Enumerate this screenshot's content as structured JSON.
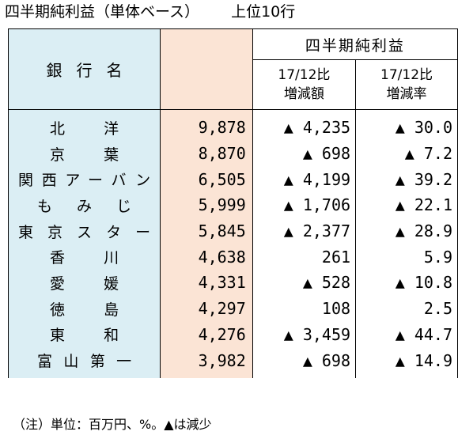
{
  "title": "四半期純利益（単体ベース）",
  "subtitle": "上位10行",
  "header": {
    "bank": "銀行名",
    "main": "四半期純利益",
    "diff_label_1": "17/12比",
    "diff_label_2": "増減額",
    "rate_label_1": "17/12比",
    "rate_label_2": "増減率"
  },
  "rows": [
    {
      "bank": "北洋",
      "value": "9,878",
      "diff": "▲ 4,235",
      "rate": "▲ 30.0"
    },
    {
      "bank": "京葉",
      "value": "8,870",
      "diff": "▲ 698",
      "rate": "▲ 7.2"
    },
    {
      "bank": "関西アーバン",
      "value": "6,505",
      "diff": "▲ 4,199",
      "rate": "▲ 39.2"
    },
    {
      "bank": "もみじ",
      "value": "5,999",
      "diff": "▲ 1,706",
      "rate": "▲ 22.1"
    },
    {
      "bank": "東京スター",
      "value": "5,845",
      "diff": "▲ 2,377",
      "rate": "▲ 28.9"
    },
    {
      "bank": "香川",
      "value": "4,638",
      "diff": "261",
      "rate": "5.9"
    },
    {
      "bank": "愛媛",
      "value": "4,331",
      "diff": "▲ 528",
      "rate": "▲ 10.8"
    },
    {
      "bank": "徳島",
      "value": "4,297",
      "diff": "108",
      "rate": "2.5"
    },
    {
      "bank": "東和",
      "value": "4,276",
      "diff": "▲ 3,459",
      "rate": "▲ 44.7"
    },
    {
      "bank": "富山第一",
      "value": "3,982",
      "diff": "▲ 698",
      "rate": "▲ 14.9"
    }
  ],
  "note": "（注）単位：百万円、%。▲は減少"
}
